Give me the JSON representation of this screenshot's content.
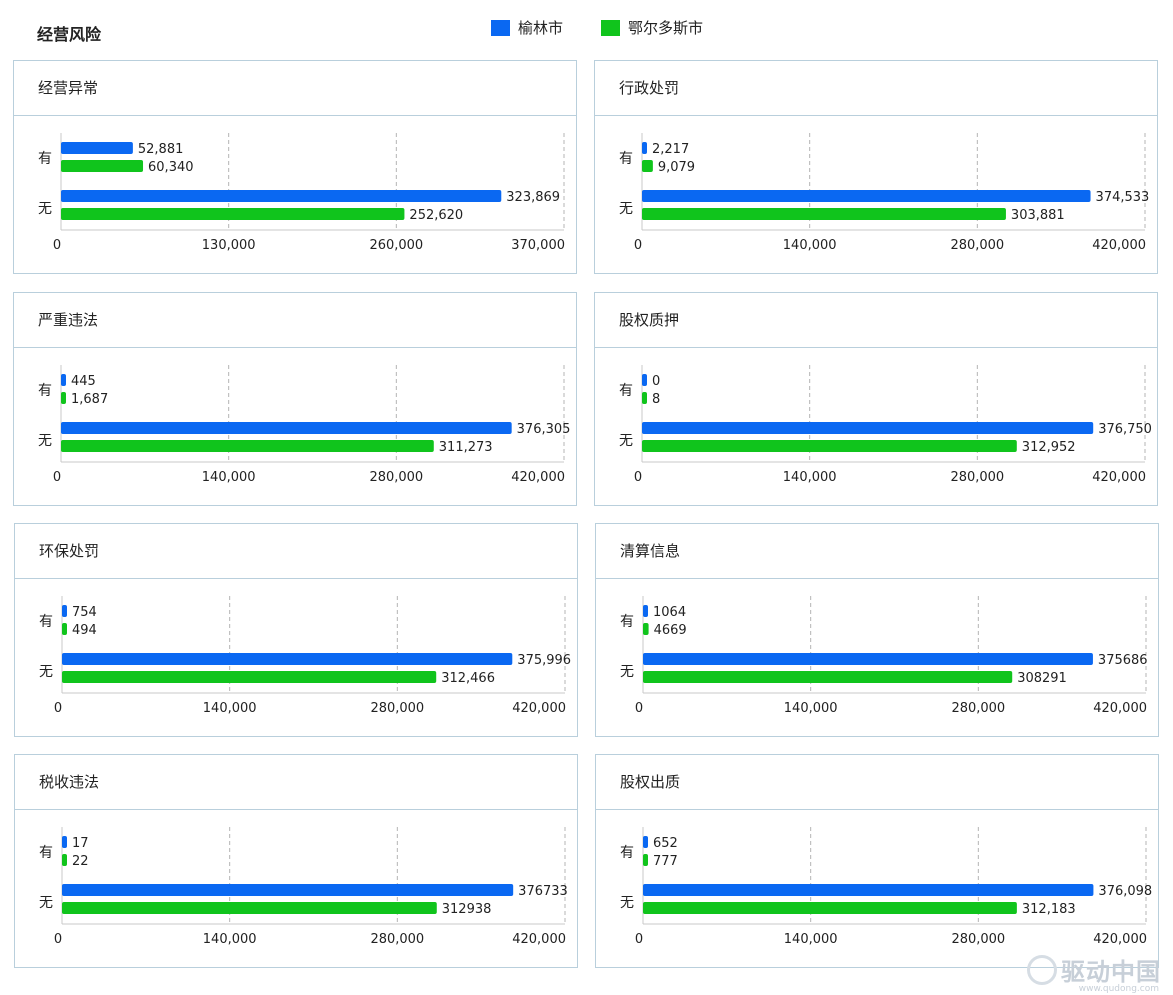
{
  "page": {
    "title": "经营风险"
  },
  "legend": [
    {
      "name": "榆林市",
      "color": "#0a68f2"
    },
    {
      "name": "鄂尔多斯市",
      "color": "#10c41c"
    }
  ],
  "watermark": {
    "text": "驱动中国",
    "url": "www.qudong.com"
  },
  "chart_data": [
    {
      "type": "bar",
      "orientation": "horizontal",
      "title": "经营异常",
      "categories": [
        "有",
        "无"
      ],
      "xlim": [
        0,
        370000
      ],
      "ticks": [
        "0",
        "130,000",
        "260,000",
        "370,000"
      ],
      "series": [
        {
          "name": "榆林市",
          "color": "#0a68f2",
          "values": [
            52881,
            323869
          ],
          "labels": [
            "52,881",
            "323,869"
          ]
        },
        {
          "name": "鄂尔多斯市",
          "color": "#10c41c",
          "values": [
            60340,
            252620
          ],
          "labels": [
            "60,340",
            "252,620"
          ]
        }
      ]
    },
    {
      "type": "bar",
      "orientation": "horizontal",
      "title": "行政处罚",
      "categories": [
        "有",
        "无"
      ],
      "xlim": [
        0,
        420000
      ],
      "ticks": [
        "0",
        "140,000",
        "280,000",
        "420,000"
      ],
      "series": [
        {
          "name": "榆林市",
          "color": "#0a68f2",
          "values": [
            2217,
            374533
          ],
          "labels": [
            "2,217",
            "374,533"
          ]
        },
        {
          "name": "鄂尔多斯市",
          "color": "#10c41c",
          "values": [
            9079,
            303881
          ],
          "labels": [
            "9,079",
            "303,881"
          ]
        }
      ]
    },
    {
      "type": "bar",
      "orientation": "horizontal",
      "title": "严重违法",
      "categories": [
        "有",
        "无"
      ],
      "xlim": [
        0,
        420000
      ],
      "ticks": [
        "0",
        "140,000",
        "280,000",
        "420,000"
      ],
      "series": [
        {
          "name": "榆林市",
          "color": "#0a68f2",
          "values": [
            445,
            376305
          ],
          "labels": [
            "445",
            "376,305"
          ]
        },
        {
          "name": "鄂尔多斯市",
          "color": "#10c41c",
          "values": [
            1687,
            311273
          ],
          "labels": [
            "1,687",
            "311,273"
          ]
        }
      ]
    },
    {
      "type": "bar",
      "orientation": "horizontal",
      "title": "股权质押",
      "categories": [
        "有",
        "无"
      ],
      "xlim": [
        0,
        420000
      ],
      "ticks": [
        "0",
        "140,000",
        "280,000",
        "420,000"
      ],
      "series": [
        {
          "name": "榆林市",
          "color": "#0a68f2",
          "values": [
            0,
            376750
          ],
          "labels": [
            "0",
            "376,750"
          ]
        },
        {
          "name": "鄂尔多斯市",
          "color": "#10c41c",
          "values": [
            8,
            312952
          ],
          "labels": [
            "8",
            "312,952"
          ]
        }
      ]
    },
    {
      "type": "bar",
      "orientation": "horizontal",
      "title": "环保处罚",
      "categories": [
        "有",
        "无"
      ],
      "xlim": [
        0,
        420000
      ],
      "ticks": [
        "0",
        "140,000",
        "280,000",
        "420,000"
      ],
      "series": [
        {
          "name": "榆林市",
          "color": "#0a68f2",
          "values": [
            754,
            375996
          ],
          "labels": [
            "754",
            "375,996"
          ]
        },
        {
          "name": "鄂尔多斯市",
          "color": "#10c41c",
          "values": [
            494,
            312466
          ],
          "labels": [
            "494",
            "312,466"
          ]
        }
      ]
    },
    {
      "type": "bar",
      "orientation": "horizontal",
      "title": "清算信息",
      "categories": [
        "有",
        "无"
      ],
      "xlim": [
        0,
        420000
      ],
      "ticks": [
        "0",
        "140,000",
        "280,000",
        "420,000"
      ],
      "series": [
        {
          "name": "榆林市",
          "color": "#0a68f2",
          "values": [
            1064,
            375686
          ],
          "labels": [
            "1064",
            "375686"
          ]
        },
        {
          "name": "鄂尔多斯市",
          "color": "#10c41c",
          "values": [
            4669,
            308291
          ],
          "labels": [
            "4669",
            "308291"
          ]
        }
      ]
    },
    {
      "type": "bar",
      "orientation": "horizontal",
      "title": "税收违法",
      "categories": [
        "有",
        "无"
      ],
      "xlim": [
        0,
        420000
      ],
      "ticks": [
        "0",
        "140,000",
        "280,000",
        "420,000"
      ],
      "series": [
        {
          "name": "榆林市",
          "color": "#0a68f2",
          "values": [
            17,
            376733
          ],
          "labels": [
            "17",
            "376733"
          ]
        },
        {
          "name": "鄂尔多斯市",
          "color": "#10c41c",
          "values": [
            22,
            312938
          ],
          "labels": [
            "22",
            "312938"
          ]
        }
      ]
    },
    {
      "type": "bar",
      "orientation": "horizontal",
      "title": "股权出质",
      "categories": [
        "有",
        "无"
      ],
      "xlim": [
        0,
        420000
      ],
      "ticks": [
        "0",
        "140,000",
        "280,000",
        "420,000"
      ],
      "series": [
        {
          "name": "榆林市",
          "color": "#0a68f2",
          "values": [
            652,
            376098
          ],
          "labels": [
            "652",
            "376,098"
          ]
        },
        {
          "name": "鄂尔多斯市",
          "color": "#10c41c",
          "values": [
            777,
            312183
          ],
          "labels": [
            "777",
            "312,183"
          ]
        }
      ]
    }
  ]
}
